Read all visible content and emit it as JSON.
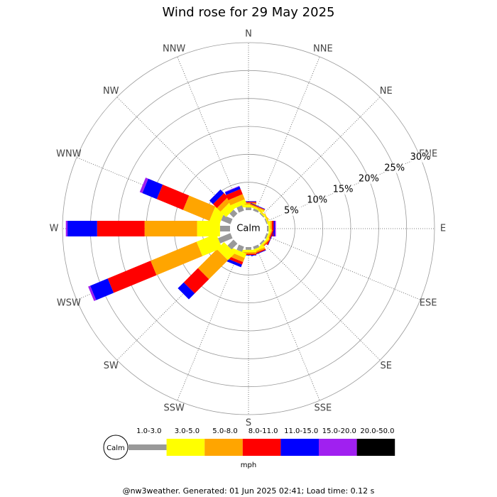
{
  "chart_data": {
    "type": "windrose",
    "title": "Wind rose for 29 May 2025",
    "directions": [
      "N",
      "NNE",
      "NE",
      "ENE",
      "E",
      "ESE",
      "SE",
      "SSE",
      "S",
      "SSW",
      "SW",
      "WSW",
      "W",
      "WNW",
      "NW",
      "NNW"
    ],
    "calm_label": "Calm",
    "unit_label": "mph",
    "rlim": [
      0,
      30
    ],
    "rticks": [
      {
        "value": 5,
        "label": "5%"
      },
      {
        "value": 10,
        "label": "10%"
      },
      {
        "value": 15,
        "label": "15%"
      },
      {
        "value": 20,
        "label": "20%"
      },
      {
        "value": 25,
        "label": "25%"
      },
      {
        "value": 30,
        "label": "30%"
      }
    ],
    "series": [
      {
        "name": "1.0-3.0",
        "color": "#999999",
        "values": [
          0.5,
          0.4,
          0.2,
          0.2,
          0.3,
          0.3,
          0.3,
          0.5,
          0.5,
          1.0,
          1.5,
          2.4,
          1.8,
          1.8,
          1.0,
          1.0
        ]
      },
      {
        "name": "3.0-5.0",
        "color": "#ffff00",
        "values": [
          0.5,
          0.3,
          0.2,
          0.2,
          0.3,
          0.3,
          0.3,
          0.4,
          0.4,
          0.8,
          1.8,
          3.8,
          4.1,
          1.9,
          1.4,
          0.8
        ]
      },
      {
        "name": "5.0-8.0",
        "color": "#ffa500",
        "values": [
          0.3,
          0.2,
          0.1,
          0.1,
          0.3,
          0.2,
          0.2,
          0.3,
          0.3,
          0.8,
          4.8,
          8.9,
          9.4,
          5.1,
          0.9,
          1.0
        ]
      },
      {
        "name": "8.0-11.0",
        "color": "#ff0000",
        "values": [
          0.2,
          0.1,
          0,
          0,
          0.3,
          0.2,
          0.1,
          0.2,
          0.2,
          0.5,
          3.6,
          8.3,
          8.5,
          5.1,
          1.0,
          1.0
        ]
      },
      {
        "name": "11.0-15.0",
        "color": "#0000ff",
        "values": [
          0.1,
          0.1,
          0,
          0,
          0.2,
          0.1,
          0,
          0.1,
          0.1,
          0.5,
          1.5,
          3.4,
          5.3,
          2.8,
          0.9,
          0.5
        ]
      },
      {
        "name": "15.0-20.0",
        "color": "#a020f0",
        "values": [
          0,
          0,
          0,
          0,
          0.2,
          0,
          0,
          0,
          0,
          0,
          0,
          0.4,
          0.3,
          0.5,
          0,
          0.1
        ]
      },
      {
        "name": "20.0-50.0",
        "color": "#000000",
        "values": [
          0,
          0,
          0,
          0,
          0,
          0,
          0,
          0,
          0,
          0,
          0,
          0,
          0,
          0,
          0,
          0
        ]
      }
    ]
  },
  "footer": "@nw3weather. Generated: 01 Jun 2025 02:41; Load time: 0.12 s"
}
